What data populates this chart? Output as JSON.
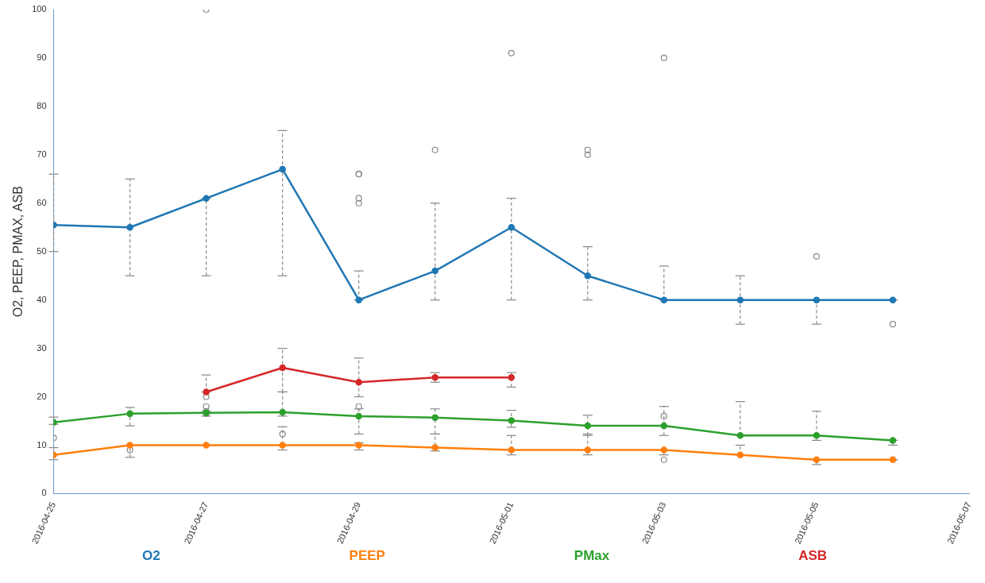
{
  "chart_data": {
    "type": "line",
    "ylabel": "O2, PEEP, PMAX, ASB",
    "x": [
      "2016-04-25",
      "2016-04-26",
      "2016-04-27",
      "2016-04-28",
      "2016-04-29",
      "2016-04-30",
      "2016-05-01",
      "2016-05-02",
      "2016-05-03",
      "2016-05-04",
      "2016-05-05",
      "2016-05-06"
    ],
    "series": [
      {
        "name": "O2",
        "color": "#1f77b4",
        "values": [
          55.5,
          55,
          61,
          67,
          40,
          46,
          55,
          45,
          40,
          40,
          40,
          40
        ],
        "errors": [
          [
            50,
            66
          ],
          [
            45,
            65
          ],
          [
            45,
            61
          ],
          [
            45,
            75
          ],
          [
            40,
            46
          ],
          [
            40,
            60
          ],
          [
            40,
            61
          ],
          [
            40,
            51
          ],
          [
            40,
            47
          ],
          [
            35,
            45
          ],
          [
            35,
            40
          ],
          [
            40,
            40
          ]
        ]
      },
      {
        "name": "PEEP",
        "color": "#ff7f0e",
        "values": [
          8,
          10,
          10,
          10,
          10,
          9.5,
          9,
          9,
          9,
          8,
          7,
          7
        ],
        "errors": [
          [
            7,
            9.5
          ],
          [
            7.5,
            10
          ],
          [
            10,
            10
          ],
          [
            9,
            13.8
          ],
          [
            9,
            10.5
          ],
          [
            8.8,
            12.3
          ],
          [
            8,
            12
          ],
          [
            8,
            12.3
          ],
          [
            8,
            9
          ],
          [
            8,
            10
          ],
          [
            6,
            7
          ],
          [
            7,
            7
          ]
        ]
      },
      {
        "name": "PMax",
        "color": "#2ca02c",
        "values": [
          14.7,
          16.5,
          16.7,
          16.8,
          16,
          15.7,
          15.1,
          14,
          14,
          12,
          12,
          11
        ],
        "errors": [
          [
            14.3,
            15.8
          ],
          [
            14,
            17.8
          ],
          [
            16,
            17
          ],
          [
            16,
            21
          ],
          [
            12.3,
            17.5
          ],
          [
            12.3,
            17.5
          ],
          [
            13.7,
            17.2
          ],
          [
            12,
            16.2
          ],
          [
            12,
            18
          ],
          [
            12,
            19
          ],
          [
            11,
            17
          ],
          [
            10,
            11
          ]
        ]
      },
      {
        "name": "ASB",
        "color": "#d62728",
        "values": [
          null,
          null,
          21,
          26,
          23,
          24,
          24,
          null,
          null,
          null,
          null,
          null
        ],
        "errors": [
          null,
          null,
          [
            21,
            24.5
          ],
          [
            21,
            30
          ],
          [
            20,
            28
          ],
          [
            23,
            25
          ],
          [
            22,
            25
          ],
          null,
          null,
          null,
          null,
          null
        ]
      },
      {
        "type": "scatter",
        "color": "#888888",
        "marker": "circle",
        "x": [
          "2016-04-25",
          "2016-04-26",
          "2016-04-27",
          "2016-04-27",
          "2016-04-27",
          "2016-04-27",
          "2016-04-27",
          "2016-04-28",
          "2016-04-29",
          "2016-04-29",
          "2016-04-29",
          "2016-04-29",
          "2016-04-29",
          "2016-04-30",
          "2016-05-01",
          "2016-05-02",
          "2016-05-02",
          "2016-05-03",
          "2016-05-03",
          "2016-05-03",
          "2016-05-05",
          "2016-05-06"
        ],
        "values": [
          11.5,
          9,
          100,
          20,
          18,
          17,
          16.5,
          12.3,
          66,
          66,
          61,
          60,
          18,
          71,
          91,
          71,
          70,
          90,
          16,
          7,
          49,
          35
        ]
      }
    ],
    "xlim": [
      "2016-04-25",
      "2016-05-07"
    ],
    "xticks": [
      "2016-04-25",
      "2016-04-27",
      "2016-04-29",
      "2016-05-01",
      "2016-05-03",
      "2016-05-05",
      "2016-05-07"
    ],
    "ylim": [
      0,
      100
    ],
    "yticks": [
      0,
      10,
      20,
      30,
      40,
      50,
      60,
      70,
      80,
      90,
      100
    ],
    "grid": false,
    "legend": "bottom",
    "marker": "circle",
    "line_style": "solid"
  }
}
